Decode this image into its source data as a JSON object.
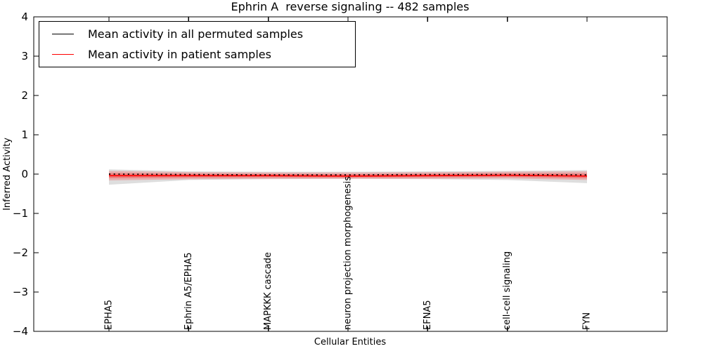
{
  "chart_data": {
    "type": "line",
    "title": "Ephrin A  reverse signaling -- 482 samples",
    "xlabel": "Cellular Entities",
    "ylabel": "Inferred Activity",
    "ylim": [
      -4,
      4
    ],
    "grid": false,
    "legend_position": "upper left",
    "yticks": [
      {
        "value": 4,
        "label": "4"
      },
      {
        "value": 3,
        "label": "3"
      },
      {
        "value": 2,
        "label": "2"
      },
      {
        "value": 1,
        "label": "1"
      },
      {
        "value": 0,
        "label": "0"
      },
      {
        "value": -1,
        "label": "−1"
      },
      {
        "value": -2,
        "label": "−2"
      },
      {
        "value": -3,
        "label": "−3"
      },
      {
        "value": -4,
        "label": "−4"
      }
    ],
    "categories": [
      "EPHA5",
      "Ephrin A5/EPHA5",
      "MAPKKK cascade",
      "neuron projection morphogenesis",
      "EFNA5",
      "cell-cell signaling",
      "FYN"
    ],
    "series": [
      {
        "name": "Mean activity in all permuted samples",
        "color": "#000000",
        "line_style": "dotted",
        "values": [
          0.0,
          -0.01,
          -0.02,
          -0.02,
          -0.01,
          -0.01,
          -0.02
        ],
        "band_upper": [
          0.12,
          0.07,
          0.06,
          0.06,
          0.07,
          0.08,
          0.1
        ],
        "band_lower": [
          -0.27,
          -0.15,
          -0.13,
          -0.12,
          -0.13,
          -0.15,
          -0.23
        ],
        "band_alpha": 0.13,
        "double_band": false
      },
      {
        "name": "Mean activity in patient samples",
        "color": "#ff0000",
        "line_style": "solid",
        "values": [
          -0.04,
          -0.04,
          -0.04,
          -0.05,
          -0.04,
          -0.03,
          -0.05
        ],
        "band_upper": [
          0.08,
          0.05,
          0.04,
          0.04,
          0.05,
          0.06,
          0.07
        ],
        "band_lower": [
          -0.16,
          -0.13,
          -0.12,
          -0.12,
          -0.12,
          -0.11,
          -0.15
        ],
        "band_alpha": 0.2,
        "double_band": true
      }
    ],
    "legend": {
      "items": [
        {
          "label": "Mean activity in all permuted samples",
          "color": "#000000"
        },
        {
          "label": "Mean activity in patient samples",
          "color": "#ff0000"
        }
      ]
    }
  }
}
